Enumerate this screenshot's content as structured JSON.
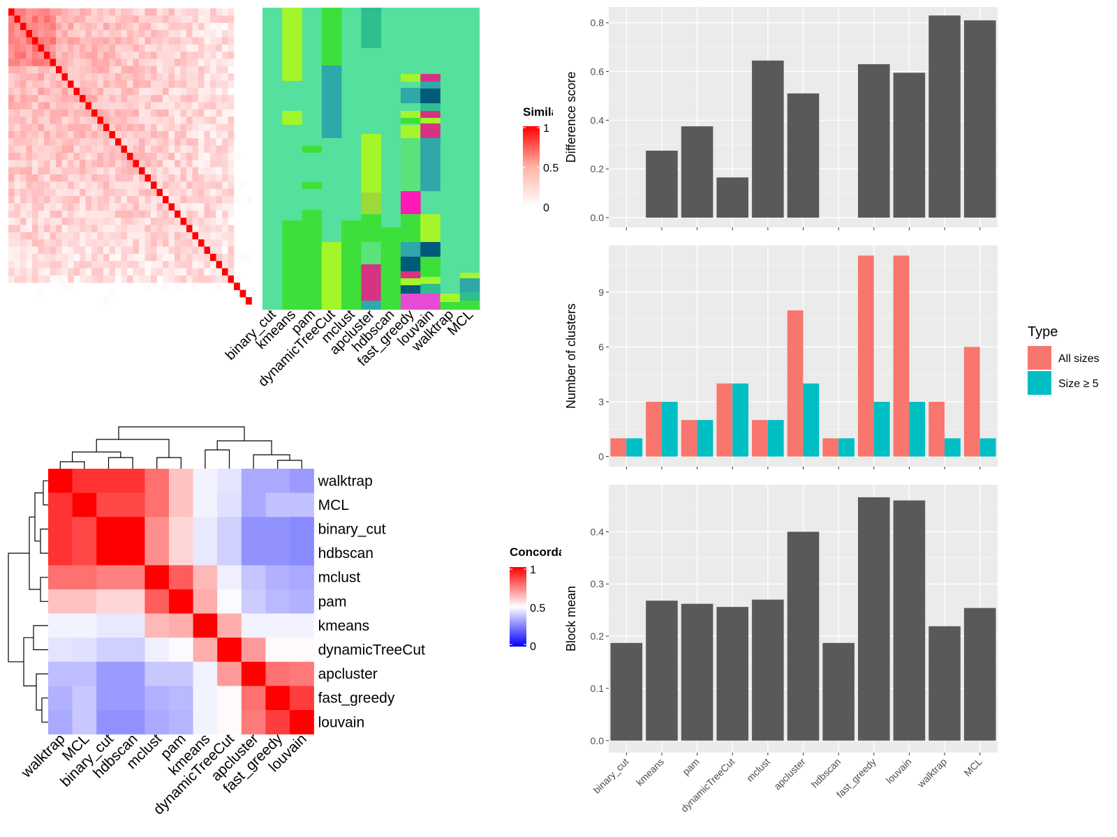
{
  "methods": [
    "binary_cut",
    "kmeans",
    "pam",
    "dynamicTreeCut",
    "mclust",
    "apcluster",
    "hdbscan",
    "fast_greedy",
    "louvain",
    "walktrap",
    "MCL"
  ],
  "legend_similarity": {
    "title": "Similarity",
    "ticks": [
      "1",
      "0.5",
      "0"
    ]
  },
  "legend_concordance": {
    "title": "Concordance",
    "ticks": [
      "1",
      "0.5",
      "0"
    ]
  },
  "legend_type": {
    "title": "Type",
    "items": [
      "All sizes",
      "Size ≥ 5"
    ],
    "colors": [
      "#F8766D",
      "#00BFC4"
    ]
  },
  "colors": {
    "bar": "#595959",
    "panel": "#EBEBEB",
    "heat_high": "#FF0000",
    "heat_low": "#0000FF",
    "cluster_base": "#55E09D"
  },
  "chart_data": [
    {
      "type": "heatmap",
      "name": "similarity",
      "title": "",
      "legend_title": "Similarity",
      "scale": [
        0,
        1
      ]
    },
    {
      "type": "heatmap",
      "name": "cluster-assignments",
      "categories": [
        "binary_cut",
        "kmeans",
        "pam",
        "dynamicTreeCut",
        "mclust",
        "apcluster",
        "hdbscan",
        "fast_greedy",
        "louvain",
        "walktrap",
        "MCL"
      ]
    },
    {
      "type": "heatmap",
      "name": "concordance",
      "legend_title": "Concordance",
      "rows": [
        "walktrap",
        "MCL",
        "binary_cut",
        "hdbscan",
        "mclust",
        "pam",
        "kmeans",
        "dynamicTreeCut",
        "apcluster",
        "fast_greedy",
        "louvain"
      ],
      "columns": [
        "walktrap",
        "MCL",
        "binary_cut",
        "hdbscan",
        "mclust",
        "pam",
        "kmeans",
        "dynamicTreeCut",
        "apcluster",
        "fast_greedy",
        "louvain"
      ],
      "values": [
        [
          1.0,
          0.9,
          0.9,
          0.9,
          0.78,
          0.62,
          0.47,
          0.43,
          0.28,
          0.28,
          0.24
        ],
        [
          0.9,
          1.0,
          0.86,
          0.86,
          0.78,
          0.62,
          0.47,
          0.42,
          0.28,
          0.34,
          0.34
        ],
        [
          0.9,
          0.86,
          1.0,
          1.0,
          0.72,
          0.58,
          0.44,
          0.38,
          0.22,
          0.22,
          0.2
        ],
        [
          0.9,
          0.86,
          1.0,
          1.0,
          0.72,
          0.58,
          0.44,
          0.38,
          0.22,
          0.22,
          0.2
        ],
        [
          0.78,
          0.78,
          0.75,
          0.75,
          1.0,
          0.82,
          0.64,
          0.46,
          0.35,
          0.3,
          0.28
        ],
        [
          0.62,
          0.62,
          0.58,
          0.58,
          0.82,
          1.0,
          0.66,
          0.49,
          0.37,
          0.32,
          0.3
        ],
        [
          0.47,
          0.47,
          0.44,
          0.44,
          0.64,
          0.66,
          1.0,
          0.66,
          0.47,
          0.47,
          0.47
        ],
        [
          0.43,
          0.42,
          0.38,
          0.38,
          0.46,
          0.49,
          0.66,
          1.0,
          0.7,
          0.51,
          0.51
        ],
        [
          0.33,
          0.33,
          0.24,
          0.24,
          0.36,
          0.36,
          0.47,
          0.7,
          1.0,
          0.78,
          0.76
        ],
        [
          0.3,
          0.36,
          0.24,
          0.24,
          0.3,
          0.32,
          0.47,
          0.51,
          0.78,
          1.0,
          0.88
        ],
        [
          0.28,
          0.36,
          0.22,
          0.22,
          0.28,
          0.31,
          0.47,
          0.51,
          0.76,
          0.88,
          1.0
        ]
      ],
      "scale": [
        0,
        1
      ]
    },
    {
      "type": "bar",
      "name": "difference-score",
      "categories": [
        "binary_cut",
        "kmeans",
        "pam",
        "dynamicTreeCut",
        "mclust",
        "apcluster",
        "hdbscan",
        "fast_greedy",
        "louvain",
        "walktrap",
        "MCL"
      ],
      "values": [
        0,
        0.275,
        0.375,
        0.165,
        0.645,
        0.51,
        0,
        0.63,
        0.595,
        0.83,
        0.81
      ],
      "ylabel": "Difference score",
      "ylim": [
        -0.04,
        0.865
      ],
      "yticks": [
        0,
        0.2,
        0.4,
        0.6,
        0.8
      ],
      "yticklabels": [
        "0.0",
        "0.2",
        "0.4",
        "0.6",
        "0.8"
      ],
      "grid": true
    },
    {
      "type": "bar",
      "name": "number-of-clusters",
      "categories": [
        "binary_cut",
        "kmeans",
        "pam",
        "dynamicTreeCut",
        "mclust",
        "apcluster",
        "hdbscan",
        "fast_greedy",
        "louvain",
        "walktrap",
        "MCL"
      ],
      "series": [
        {
          "name": "All sizes",
          "values": [
            1,
            3,
            2,
            4,
            2,
            8,
            1,
            11,
            11,
            3,
            6
          ]
        },
        {
          "name": "Size ≥ 5",
          "values": [
            1,
            3,
            2,
            4,
            2,
            4,
            1,
            3,
            3,
            1,
            1
          ]
        }
      ],
      "ylabel": "Number of clusters",
      "ylim": [
        -0.55,
        11.55
      ],
      "yticks": [
        0,
        3,
        6,
        9
      ],
      "yticklabels": [
        "0",
        "3",
        "6",
        "9"
      ],
      "legend": "right",
      "grid": true
    },
    {
      "type": "bar",
      "name": "block-mean",
      "categories": [
        "binary_cut",
        "kmeans",
        "pam",
        "dynamicTreeCut",
        "mclust",
        "apcluster",
        "hdbscan",
        "fast_greedy",
        "louvain",
        "walktrap",
        "MCL"
      ],
      "values": [
        0.187,
        0.268,
        0.262,
        0.256,
        0.27,
        0.4,
        0.187,
        0.466,
        0.46,
        0.219,
        0.254
      ],
      "ylabel": "Block mean",
      "ylim": [
        -0.023,
        0.49
      ],
      "yticks": [
        0,
        0.1,
        0.2,
        0.3,
        0.4
      ],
      "yticklabels": [
        "0.0",
        "0.1",
        "0.2",
        "0.3",
        "0.4"
      ],
      "grid": true
    }
  ]
}
